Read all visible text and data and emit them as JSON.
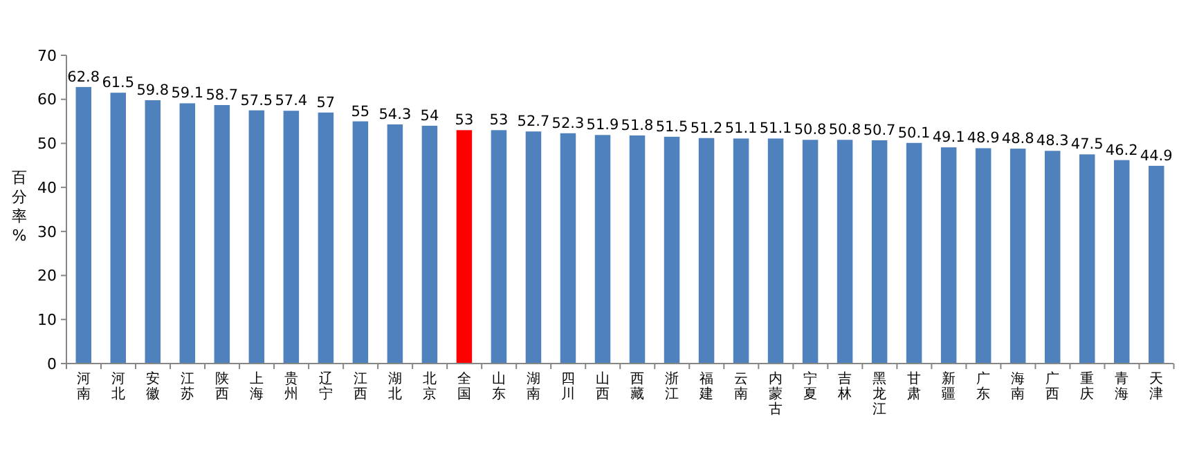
{
  "chart_data": {
    "type": "bar",
    "ylabel": "百分率%",
    "categories": [
      "河南",
      "河北",
      "安徽",
      "江苏",
      "陕西",
      "上海",
      "贵州",
      "辽宁",
      "江西",
      "湖北",
      "北京",
      "全国",
      "山东",
      "湖南",
      "四川",
      "山西",
      "西藏",
      "浙江",
      "福建",
      "云南",
      "内蒙古",
      "宁夏",
      "吉林",
      "黑龙江",
      "甘肃",
      "新疆",
      "广东",
      "海南",
      "广西",
      "重庆",
      "青海",
      "天津"
    ],
    "values": [
      62.8,
      61.5,
      59.8,
      59.1,
      58.7,
      57.5,
      57.4,
      57,
      55,
      54.3,
      54,
      53,
      53,
      52.7,
      52.3,
      51.9,
      51.8,
      51.5,
      51.2,
      51.1,
      51.1,
      50.8,
      50.8,
      50.7,
      50.1,
      49.1,
      48.9,
      48.8,
      48.3,
      47.5,
      46.2,
      44.9
    ],
    "colors": [
      "#4f81bd",
      "#4f81bd",
      "#4f81bd",
      "#4f81bd",
      "#4f81bd",
      "#4f81bd",
      "#4f81bd",
      "#4f81bd",
      "#4f81bd",
      "#4f81bd",
      "#4f81bd",
      "#ff0000",
      "#4f81bd",
      "#4f81bd",
      "#4f81bd",
      "#4f81bd",
      "#4f81bd",
      "#4f81bd",
      "#4f81bd",
      "#4f81bd",
      "#4f81bd",
      "#4f81bd",
      "#4f81bd",
      "#4f81bd",
      "#4f81bd",
      "#4f81bd",
      "#4f81bd",
      "#4f81bd",
      "#4f81bd",
      "#4f81bd",
      "#4f81bd",
      "#4f81bd"
    ],
    "ylim": [
      0,
      70
    ],
    "yticks": [
      0,
      10,
      20,
      30,
      40,
      50,
      60,
      70
    ],
    "data_labels": true
  }
}
